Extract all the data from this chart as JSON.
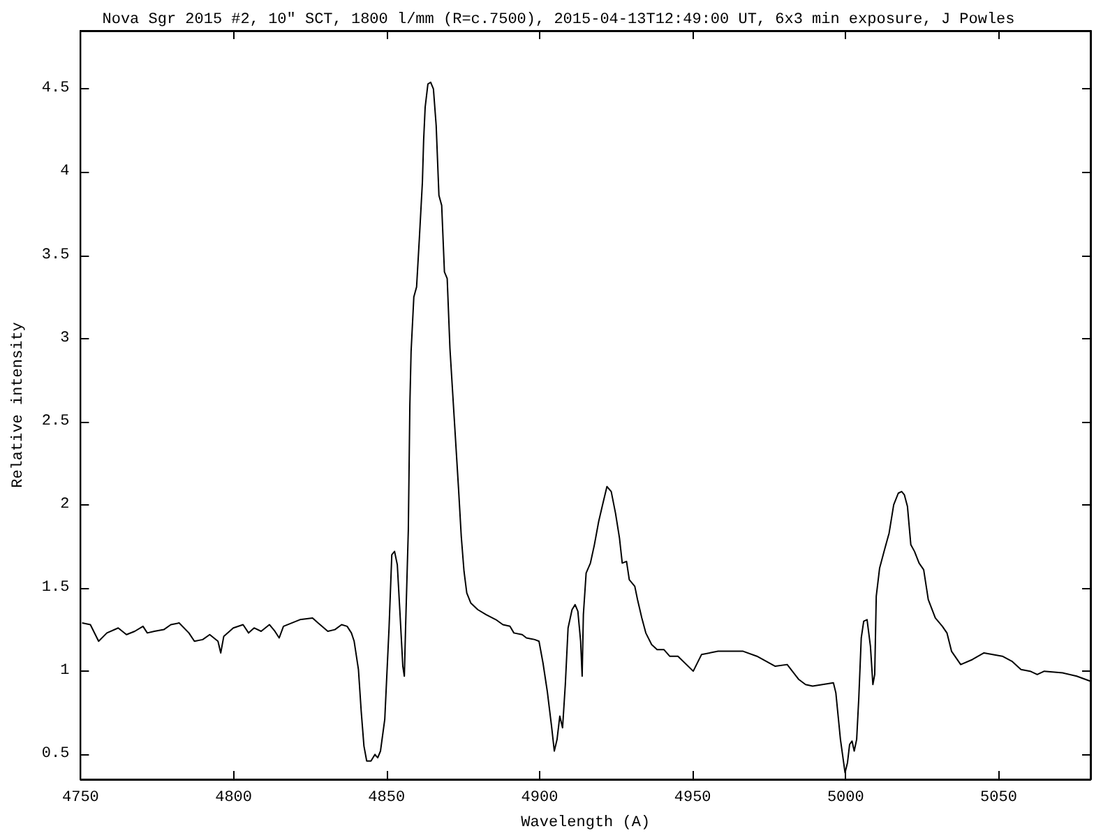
{
  "chart_data": {
    "type": "line",
    "title": "Nova Sgr 2015 #2, 10\" SCT, 1800 l/mm (R=c.7500), 2015-04-13T12:49:00 UT, 6x3 min exposure, J Powles",
    "xlabel": "Wavelength (A)",
    "ylabel": "Relative intensity",
    "xlim": [
      4750,
      5080
    ],
    "ylim": [
      0.35,
      4.85
    ],
    "xticks": [
      4750,
      4800,
      4850,
      4900,
      4950,
      5000,
      5050
    ],
    "yticks": [
      0.5,
      1,
      1.5,
      2,
      2.5,
      3,
      3.5,
      4,
      4.5
    ],
    "grid": false,
    "marker": "none",
    "line_style": "solid",
    "series": [
      {
        "color": "#000000",
        "x": [
          4750.5,
          4753.2,
          4755.9,
          4758.6,
          4762.3,
          4765.0,
          4767.7,
          4770.4,
          4771.8,
          4774.1,
          4777.2,
          4779.5,
          4782.2,
          4785.4,
          4787.2,
          4789.9,
          4792.2,
          4794.9,
          4795.8,
          4796.8,
          4799.9,
          4803.1,
          4804.9,
          4806.7,
          4809.0,
          4811.7,
          4813.5,
          4814.9,
          4816.3,
          4821.7,
          4825.8,
          4827.6,
          4830.8,
          4833.1,
          4835.3,
          4837.1,
          4838.5,
          4839.4,
          4840.8,
          4841.7,
          4842.6,
          4843.5,
          4844.9,
          4846.2,
          4847.1,
          4848.0,
          4849.4,
          4850.8,
          4851.7,
          4852.6,
          4853.5,
          4854.4,
          4855.3,
          4855.8,
          4856.2,
          4857.1,
          4857.6,
          4858.0,
          4858.9,
          4859.8,
          4860.7,
          4861.7,
          4862.1,
          4862.6,
          4863.5,
          4864.4,
          4865.3,
          4866.2,
          4867.1,
          4868.0,
          4868.9,
          4869.8,
          4870.7,
          4872.1,
          4873.5,
          4874.4,
          4875.3,
          4876.2,
          4877.5,
          4879.8,
          4882.5,
          4885.7,
          4888.0,
          4890.3,
          4891.6,
          4894.3,
          4895.7,
          4898.4,
          4899.8,
          4901.1,
          4902.5,
          4903.9,
          4904.8,
          4905.7,
          4906.6,
          4907.5,
          4908.4,
          4909.3,
          4910.6,
          4911.6,
          4912.5,
          4913.4,
          4913.9,
          4914.3,
          4915.2,
          4916.6,
          4917.9,
          4919.3,
          4920.7,
          4922.0,
          4923.4,
          4924.8,
          4926.1,
          4927.0,
          4928.4,
          4929.3,
          4931.1,
          4932.0,
          4933.4,
          4934.7,
          4936.6,
          4938.4,
          4940.6,
          4942.5,
          4945.2,
          4950.2,
          4952.9,
          4958.3,
          4966.5,
          4971.0,
          4977.0,
          4980.9,
          4984.7,
          4986.9,
          4989.2,
          4996.0,
          4996.8,
          4998.3,
          4999.8,
          5000.6,
          5001.3,
          5002.1,
          5002.8,
          5003.6,
          5004.3,
          5005.1,
          5005.9,
          5007.0,
          5008.1,
          5008.9,
          5009.5,
          5010.0,
          5011.1,
          5012.7,
          5014.2,
          5015.7,
          5017.2,
          5018.3,
          5019.2,
          5020.2,
          5021.3,
          5022.5,
          5024.0,
          5025.5,
          5027.0,
          5029.3,
          5031.6,
          5033.1,
          5034.6,
          5037.6,
          5041.4,
          5045.2,
          5051.2,
          5054.3,
          5057.3,
          5060.3,
          5062.6,
          5064.9,
          5070.9,
          5075.5,
          5080.0
        ],
        "values": [
          1.29,
          1.28,
          1.18,
          1.23,
          1.26,
          1.22,
          1.24,
          1.27,
          1.23,
          1.24,
          1.25,
          1.28,
          1.29,
          1.23,
          1.18,
          1.19,
          1.22,
          1.18,
          1.11,
          1.21,
          1.26,
          1.28,
          1.23,
          1.26,
          1.24,
          1.28,
          1.24,
          1.2,
          1.27,
          1.31,
          1.32,
          1.29,
          1.24,
          1.25,
          1.28,
          1.27,
          1.23,
          1.18,
          1.01,
          0.76,
          0.55,
          0.46,
          0.46,
          0.5,
          0.48,
          0.52,
          0.71,
          1.26,
          1.7,
          1.72,
          1.64,
          1.34,
          1.03,
          0.97,
          1.26,
          1.85,
          2.6,
          2.92,
          3.25,
          3.31,
          3.6,
          3.94,
          4.19,
          4.39,
          4.53,
          4.54,
          4.5,
          4.28,
          3.86,
          3.8,
          3.4,
          3.36,
          2.94,
          2.52,
          2.1,
          1.81,
          1.6,
          1.47,
          1.41,
          1.37,
          1.34,
          1.31,
          1.28,
          1.27,
          1.23,
          1.22,
          1.2,
          1.19,
          1.18,
          1.05,
          0.88,
          0.67,
          0.52,
          0.59,
          0.73,
          0.66,
          0.92,
          1.26,
          1.37,
          1.4,
          1.36,
          1.18,
          0.97,
          1.34,
          1.59,
          1.65,
          1.76,
          1.9,
          2.01,
          2.11,
          2.08,
          1.95,
          1.8,
          1.65,
          1.66,
          1.55,
          1.51,
          1.43,
          1.32,
          1.23,
          1.16,
          1.13,
          1.13,
          1.09,
          1.09,
          1.0,
          1.1,
          1.12,
          1.12,
          1.09,
          1.03,
          1.04,
          0.95,
          0.92,
          0.91,
          0.93,
          0.87,
          0.59,
          0.39,
          0.45,
          0.56,
          0.58,
          0.52,
          0.59,
          0.84,
          1.2,
          1.3,
          1.31,
          1.15,
          0.92,
          0.98,
          1.45,
          1.62,
          1.73,
          1.83,
          2.0,
          2.07,
          2.08,
          2.06,
          1.99,
          1.76,
          1.72,
          1.65,
          1.61,
          1.43,
          1.32,
          1.27,
          1.23,
          1.12,
          1.04,
          1.07,
          1.11,
          1.09,
          1.06,
          1.01,
          1.0,
          0.98,
          1.0,
          0.99,
          0.97,
          0.94
        ]
      }
    ]
  }
}
